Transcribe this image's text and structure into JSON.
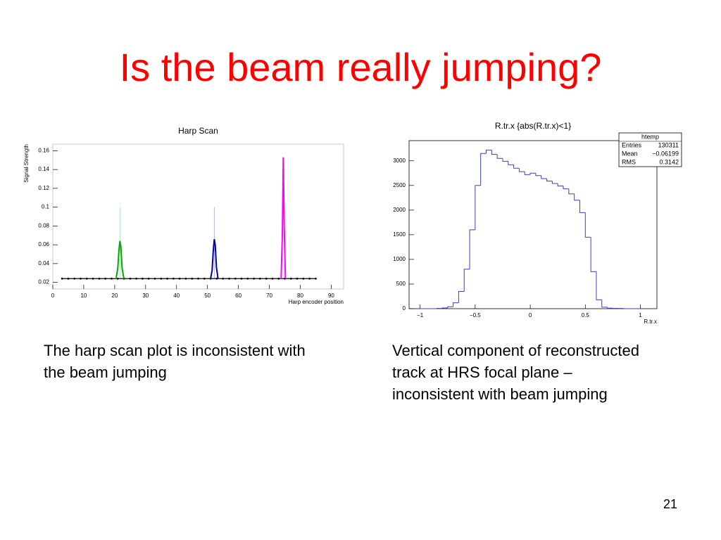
{
  "slide": {
    "title": "Is the beam really jumping?",
    "captions": [
      "The harp scan plot is inconsistent with|the beam jumping",
      "Vertical component of reconstructed|track at HRS focal plane –|inconsistent with beam jumping"
    ],
    "page_number": "21"
  },
  "chart_data": [
    {
      "type": "scatter",
      "title": "Harp Scan",
      "x_label": "Harp encoder position",
      "y_label": "Signal Strength",
      "xlim": [
        0,
        94
      ],
      "ylim": [
        0.013,
        0.167
      ],
      "xticks": [
        0,
        10,
        20,
        30,
        40,
        50,
        60,
        70,
        80,
        90
      ],
      "yticks": [
        0.02,
        0.04,
        0.06,
        0.08,
        0.1,
        0.12,
        0.14,
        0.16
      ],
      "series": [
        {
          "color": "#000000",
          "mode": "markers",
          "x": [
            3,
            5,
            7,
            9,
            11,
            13,
            15,
            17,
            19,
            21,
            23,
            25,
            27,
            29,
            31,
            33,
            35,
            37,
            39,
            41,
            43,
            45,
            47,
            49,
            51,
            53,
            55,
            57,
            59,
            61,
            63,
            65,
            67,
            69,
            71,
            73,
            75,
            77,
            79,
            81,
            83,
            85
          ],
          "values": [
            0.024,
            0.024,
            0.024,
            0.024,
            0.024,
            0.024,
            0.024,
            0.024,
            0.024,
            0.024,
            0.024,
            0.024,
            0.024,
            0.024,
            0.024,
            0.024,
            0.024,
            0.024,
            0.024,
            0.024,
            0.024,
            0.024,
            0.024,
            0.024,
            0.024,
            0.024,
            0.024,
            0.024,
            0.024,
            0.024,
            0.024,
            0.024,
            0.024,
            0.024,
            0.024,
            0.024,
            0.024,
            0.024,
            0.024,
            0.024,
            0.024,
            0.024
          ]
        },
        {
          "color": "#00aa00",
          "mode": "lines",
          "spike_x": 21.7,
          "spike_y": 0.1,
          "x": [
            20.5,
            21,
            21.4,
            21.7,
            22,
            22.4,
            23
          ],
          "values": [
            0.025,
            0.035,
            0.055,
            0.064,
            0.058,
            0.035,
            0.024
          ]
        },
        {
          "color": "#0000aa",
          "mode": "lines",
          "spike_x": 52.2,
          "spike_y": 0.1,
          "x": [
            51,
            51.5,
            51.9,
            52.2,
            52.5,
            52.9,
            53.4
          ],
          "values": [
            0.024,
            0.033,
            0.055,
            0.066,
            0.06,
            0.036,
            0.024
          ]
        },
        {
          "color": "#ff00ff",
          "mode": "lines",
          "x": [
            73.8,
            74.2,
            74.5,
            74.8,
            75.2
          ],
          "values": [
            0.024,
            0.07,
            0.153,
            0.08,
            0.024
          ]
        }
      ]
    },
    {
      "type": "histogram",
      "title": "R.tr.x {abs(R.tr.x)<1}",
      "x_label": "R.tr.x",
      "color": "#3f3fbf",
      "xlim": [
        -1.1,
        1.15
      ],
      "ylim": [
        0,
        3410
      ],
      "xticks": [
        {
          "value": -1,
          "label": "−1"
        },
        {
          "value": -0.5,
          "label": "−0.5"
        },
        0,
        0.5,
        1
      ],
      "yticks": [
        0,
        500,
        1000,
        1500,
        2000,
        2500,
        3000
      ],
      "bins": [
        -1,
        -0.95,
        -0.9,
        -0.85,
        -0.8,
        -0.75,
        -0.7,
        -0.65,
        -0.6,
        -0.55,
        -0.5,
        -0.45,
        -0.4,
        -0.35,
        -0.3,
        -0.25,
        -0.2,
        -0.15,
        -0.1,
        -0.05,
        0,
        0.05,
        0.1,
        0.15,
        0.2,
        0.25,
        0.3,
        0.35,
        0.4,
        0.45,
        0.5,
        0.55,
        0.6,
        0.65,
        0.7,
        0.75,
        0.8,
        0.85,
        0.9,
        0.95,
        1
      ],
      "counts": [
        0,
        0,
        0,
        5,
        15,
        40,
        120,
        350,
        800,
        1600,
        2500,
        3150,
        3220,
        3130,
        3050,
        2990,
        2920,
        2850,
        2780,
        2720,
        2750,
        2700,
        2640,
        2590,
        2540,
        2490,
        2430,
        2330,
        2200,
        1950,
        1450,
        750,
        180,
        30,
        10,
        8,
        5,
        0,
        0,
        0
      ],
      "stats": {
        "title": "htemp",
        "rows": [
          [
            "Entries",
            "130311"
          ],
          [
            "Mean",
            "−0.06199"
          ],
          [
            "RMS",
            "0.3142"
          ]
        ]
      }
    }
  ]
}
